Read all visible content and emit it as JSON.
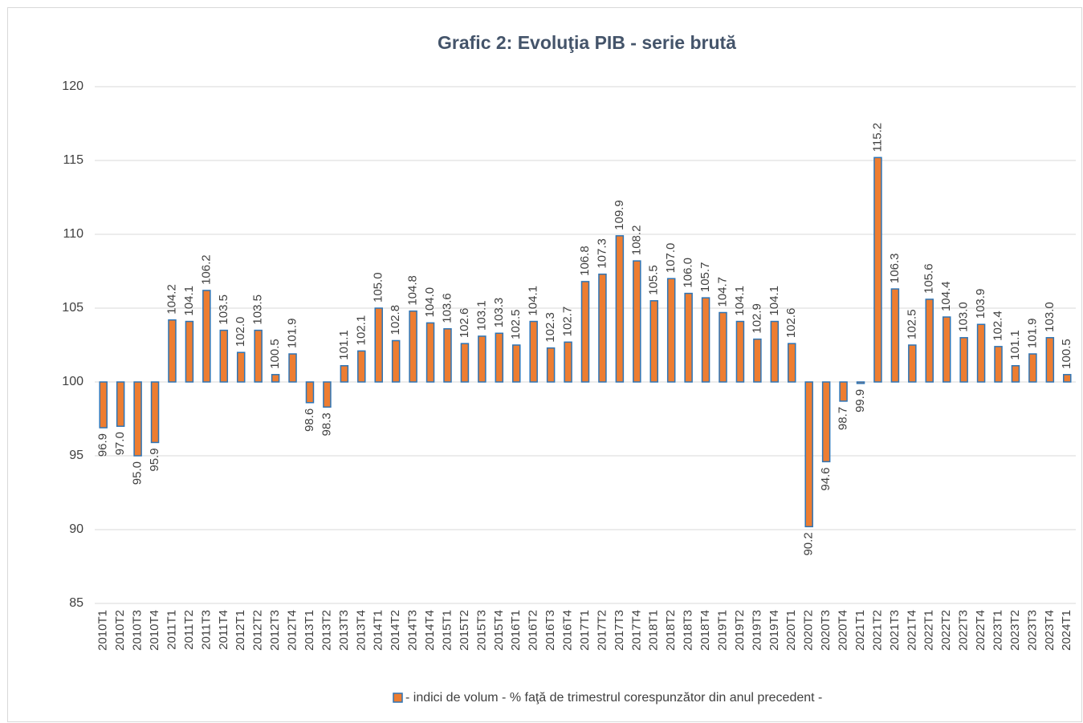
{
  "chart_data": {
    "type": "bar",
    "title": "Grafic 2: Evoluţia PIB - serie brută",
    "categories": [
      "2010T1",
      "2010T2",
      "2010T3",
      "2010T4",
      "2011T1",
      "2011T2",
      "2011T3",
      "2011T4",
      "2012T1",
      "2012T2",
      "2012T3",
      "2012T4",
      "2013T1",
      "2013T2",
      "2013T3",
      "2013T4",
      "2014T1",
      "2014T2",
      "2014T3",
      "2014T4",
      "2015T1",
      "2015T2",
      "2015T3",
      "2015T4",
      "2016T1",
      "2016T2",
      "2016T3",
      "2016T4",
      "2017T1",
      "2017T2",
      "2017T3",
      "2017T4",
      "2018T1",
      "2018T2",
      "2018T3",
      "2018T4",
      "2019T1",
      "2019T2",
      "2019T3",
      "2019T4",
      "2020T1",
      "2020T2",
      "2020T3",
      "2020T4",
      "2021T1",
      "2021T2",
      "2021T3",
      "2021T4",
      "2022T1",
      "2022T2",
      "2022T3",
      "2022T4",
      "2023T1",
      "2023T2",
      "2023T3",
      "2023T4",
      "2024T1"
    ],
    "series": [
      {
        "name": "- indici de volum - % faţă de trimestrul corespunzător din anul precedent -",
        "color": "#ed7d31",
        "edge_color": "#2e75b6",
        "values": [
          96.9,
          97.0,
          95.0,
          95.9,
          104.2,
          104.1,
          106.2,
          103.5,
          102.0,
          103.5,
          100.5,
          101.9,
          98.6,
          98.3,
          101.1,
          102.1,
          105.0,
          102.8,
          104.8,
          104.0,
          103.6,
          102.6,
          103.1,
          103.3,
          102.5,
          104.1,
          102.3,
          102.7,
          106.8,
          107.3,
          109.9,
          108.2,
          105.5,
          107.0,
          106.0,
          105.7,
          104.7,
          104.1,
          102.9,
          104.1,
          102.6,
          90.2,
          94.6,
          98.7,
          99.9,
          115.2,
          106.3,
          102.5,
          105.6,
          104.4,
          103.0,
          103.9,
          102.4,
          101.1,
          101.9,
          103.0,
          100.5
        ],
        "value_labels": [
          "96.9",
          "97.0",
          "95.0",
          "95.9",
          "104.2",
          "104.1",
          "106.2",
          "103.5",
          "102.0",
          "103.5",
          "100.5",
          "101.9",
          "98.6",
          "98.3",
          "101.1",
          "102.1",
          "105.0",
          "102.8",
          "104.8",
          "104.0",
          "103.6",
          "102.6",
          "103.1",
          "103.3",
          "102.5",
          "104.1",
          "102.3",
          "102.7",
          "106.8",
          "107.3",
          "109.9",
          "108.2",
          "105.5",
          "107.0",
          "106.0",
          "105.7",
          "104.7",
          "104.1",
          "102.9",
          "104.1",
          "102.6",
          "90.2",
          "94.6",
          "98.7",
          "99.9",
          "115.2",
          "106.3",
          "102.5",
          "105.6",
          "104.4",
          "103.0",
          "103.9",
          "102.4",
          "101.1",
          "101.9",
          "103.0",
          "100.5"
        ]
      }
    ],
    "ylim": [
      85,
      120
    ],
    "yticks": [
      85,
      90,
      95,
      100,
      105,
      110,
      115,
      120
    ],
    "base": 100,
    "grid": true,
    "legend": "bottom"
  }
}
